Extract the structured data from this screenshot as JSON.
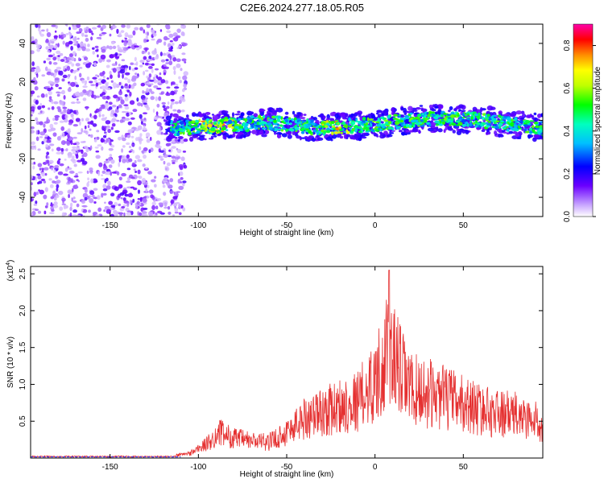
{
  "title": "C2E6.2024.277.18.05.R05",
  "colors": {
    "snr_line": "#e53030",
    "zero_line": "#3333ff"
  },
  "chart_data": [
    {
      "type": "heatmap",
      "xlabel": "Height of straight line (km)",
      "ylabel": "Frequency (Hz)",
      "xlim": [
        -195,
        95
      ],
      "ylim": [
        -50,
        50
      ],
      "x_ticks": [
        -150,
        -100,
        -50,
        0,
        50
      ],
      "y_ticks": [
        -40,
        -20,
        0,
        20,
        40
      ],
      "colorbar": {
        "label": "Normalized spectral amplitude",
        "range": [
          0,
          0.9
        ],
        "ticks": [
          0.0,
          0.2,
          0.4,
          0.6,
          0.8
        ],
        "colormap": "rainbow"
      },
      "description_free_zone": {
        "scattered_noise_x": [
          -195,
          -115
        ],
        "signal_band_center_hz": [
          {
            "x": -115,
            "y": -4
          },
          {
            "x": -90,
            "y": -3
          },
          {
            "x": -60,
            "y": -1
          },
          {
            "x": -30,
            "y": -4
          },
          {
            "x": 0,
            "y": -2
          },
          {
            "x": 30,
            "y": 1
          },
          {
            "x": 60,
            "y": 0
          },
          {
            "x": 95,
            "y": -4
          }
        ]
      }
    },
    {
      "type": "line",
      "xlabel": "Height of straight line (km)",
      "ylabel": "SNR (10 * v/v)",
      "y_scale_label": "(x10",
      "y_scale_exp": "4",
      "y_scale_close": ")",
      "xlim": [
        -195,
        95
      ],
      "ylim": [
        0,
        2.6
      ],
      "x_ticks": [
        -150,
        -100,
        -50,
        0,
        50
      ],
      "y_ticks": [
        0.5,
        1.0,
        1.5,
        2.0,
        2.5
      ],
      "envelope": [
        {
          "x": -195,
          "y": 0.0
        },
        {
          "x": -120,
          "y": 0.02
        },
        {
          "x": -105,
          "y": 0.08
        },
        {
          "x": -95,
          "y": 0.25
        },
        {
          "x": -88,
          "y": 0.45
        },
        {
          "x": -80,
          "y": 0.35
        },
        {
          "x": -70,
          "y": 0.3
        },
        {
          "x": -60,
          "y": 0.28
        },
        {
          "x": -50,
          "y": 0.45
        },
        {
          "x": -40,
          "y": 0.7
        },
        {
          "x": -25,
          "y": 0.85
        },
        {
          "x": -10,
          "y": 1.0
        },
        {
          "x": 0,
          "y": 1.35
        },
        {
          "x": 8,
          "y": 1.9
        },
        {
          "x": 20,
          "y": 1.2
        },
        {
          "x": 35,
          "y": 1.1
        },
        {
          "x": 50,
          "y": 0.95
        },
        {
          "x": 65,
          "y": 0.8
        },
        {
          "x": 80,
          "y": 0.75
        },
        {
          "x": 95,
          "y": 0.6
        }
      ],
      "peak": {
        "x": 8,
        "y": 2.55
      }
    }
  ]
}
